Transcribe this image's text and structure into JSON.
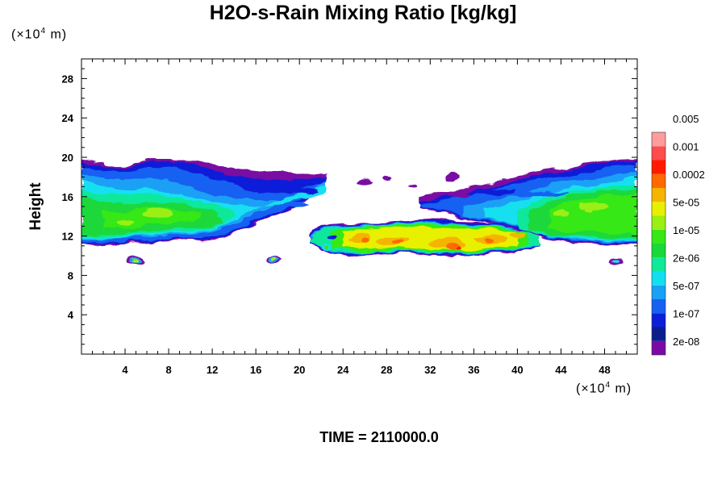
{
  "chart_data": {
    "type": "heatmap",
    "title": "H2O-s-Rain Mixing Ratio [kg/kg]",
    "ylabel": "Height",
    "x_unit": "(×10⁴ m)",
    "y_unit": "(×10⁴ m)",
    "footer": "TIME = 2110000.0",
    "xlim": [
      0,
      51
    ],
    "ylim": [
      0,
      30
    ],
    "x_ticks": [
      4,
      8,
      12,
      16,
      20,
      24,
      28,
      32,
      36,
      40,
      44,
      48
    ],
    "y_ticks": [
      4,
      8,
      12,
      16,
      20,
      24,
      28
    ],
    "colorbar": {
      "colors": [
        "#7a0aa3",
        "#0b1d8c",
        "#0a1fd8",
        "#1660f2",
        "#1aa0f5",
        "#12e0f0",
        "#10e89a",
        "#1ad83a",
        "#36e818",
        "#9aef14",
        "#e8f000",
        "#f5b400",
        "#ff6a00",
        "#ff1a00",
        "#ff4c4c",
        "#ff9c9c"
      ],
      "labels": [
        "2e-08",
        "1e-07",
        "5e-07",
        "2e-06",
        "1e-05",
        "5e-05",
        "0.0002",
        "0.001",
        "0.005"
      ]
    },
    "field_summary": [
      {
        "x_range": [
          0,
          22.5
        ],
        "height_range": [
          11,
          19.8
        ],
        "max_level_index": 9
      },
      {
        "x_range": [
          21,
          42
        ],
        "height_range": [
          10,
          13.5
        ],
        "max_level_index": 13
      },
      {
        "x_range": [
          31,
          51
        ],
        "height_range": [
          11,
          19.8
        ],
        "max_level_index": 9
      }
    ]
  }
}
